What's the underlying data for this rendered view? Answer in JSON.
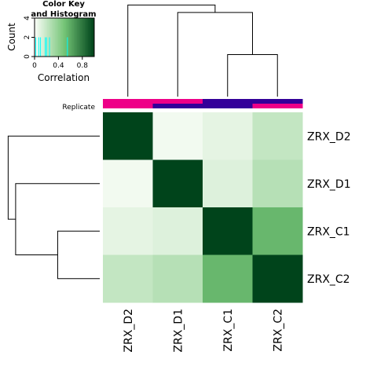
{
  "chart_data": {
    "type": "heatmap",
    "rows": [
      "ZRX_D2",
      "ZRX_D1",
      "ZRX_C1",
      "ZRX_C2"
    ],
    "columns": [
      "ZRX_D2",
      "ZRX_D1",
      "ZRX_C1",
      "ZRX_C2"
    ],
    "values": [
      [
        1.0,
        0.02,
        0.07,
        0.2
      ],
      [
        0.02,
        1.0,
        0.1,
        0.25
      ],
      [
        0.07,
        0.1,
        1.0,
        0.55
      ],
      [
        0.2,
        0.25,
        0.55,
        1.0
      ]
    ],
    "column_side_label": "Replicate",
    "column_side_colors": [
      [
        "#EE0088",
        "#EE0088"
      ],
      [
        "#EE0088",
        "#330099"
      ],
      [
        "#330099",
        "#330099"
      ],
      [
        "#330099",
        "#EE0088"
      ]
    ],
    "color_scale": {
      "low": "#F7FCF5",
      "mid": "#74C476",
      "high": "#00441B"
    },
    "color_key": {
      "title_line1": "Color Key",
      "title_line2": "and Histogram",
      "xlabel": "Correlation",
      "ylabel": "Count",
      "x_ticks": [
        "0",
        "0.4",
        "0.8"
      ],
      "y_ticks": [
        "0",
        "2",
        "4"
      ],
      "xlim": [
        0,
        1
      ],
      "ylim": [
        0,
        4
      ],
      "histogram_x": [
        0.02,
        0.07,
        0.1,
        0.18,
        0.2,
        0.25,
        0.55
      ],
      "histogram_color": "#00FFFF"
    },
    "column_dendrogram": [
      {
        "left": 2,
        "right": 3,
        "height": 0.45
      },
      {
        "left": 1,
        "right": "m1",
        "height": 0.9
      },
      {
        "left": 0,
        "right": "m2",
        "height": 0.98
      }
    ],
    "row_dendrogram": [
      {
        "left": 2,
        "right": 3,
        "height": 0.45
      },
      {
        "left": 1,
        "right": "m1",
        "height": 0.9
      },
      {
        "left": 0,
        "right": "m2",
        "height": 0.98
      }
    ]
  }
}
